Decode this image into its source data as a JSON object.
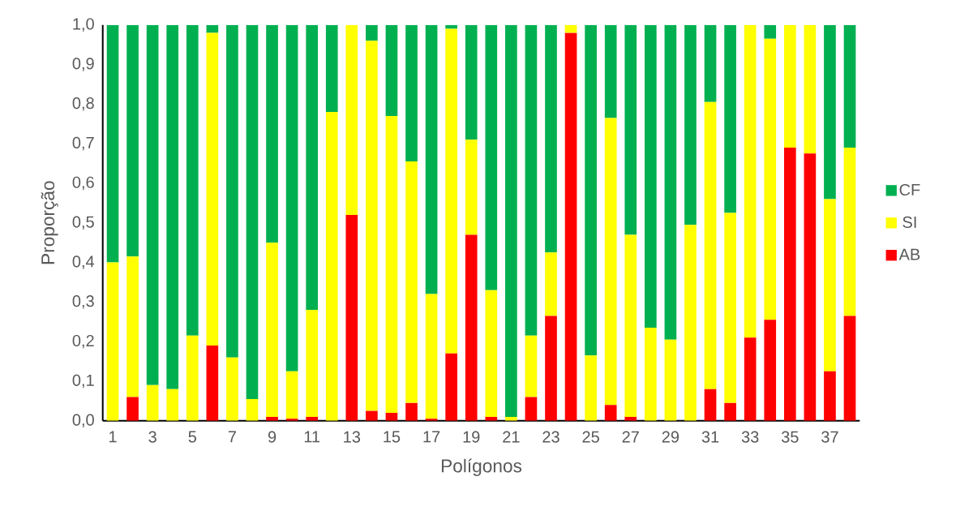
{
  "chart_data": {
    "type": "bar",
    "stacked": true,
    "xlabel": "Polígonos",
    "ylabel": "Proporção",
    "categories": [
      "1",
      null,
      "3",
      null,
      "5",
      null,
      "7",
      null,
      "9",
      null,
      "11",
      null,
      "13",
      null,
      "15",
      null,
      "17",
      null,
      "19",
      null,
      "21",
      null,
      "23",
      null,
      "25",
      null,
      "27",
      null,
      "29",
      null,
      "31",
      null,
      "33",
      null,
      "35",
      null,
      "37",
      null
    ],
    "series": [
      {
        "name": "AB",
        "color": "#ff0000",
        "values": [
          0,
          0.06,
          0,
          0,
          0,
          0.19,
          0,
          0,
          0.01,
          0.005,
          0.01,
          0,
          0.52,
          0.025,
          0.02,
          0.045,
          0.005,
          0.17,
          0.47,
          0.01,
          0,
          0.06,
          0.265,
          0.98,
          0,
          0.04,
          0.01,
          0,
          0,
          0,
          0.08,
          0.045,
          0.21,
          0.255,
          0.69,
          0.675,
          0.125,
          0.265
        ]
      },
      {
        "name": "SI",
        "color": "#ffff00",
        "values": [
          0.4,
          0.355,
          0.09,
          0.08,
          0.215,
          0.79,
          0.16,
          0.055,
          0.44,
          0.12,
          0.27,
          0.78,
          0.48,
          0.935,
          0.75,
          0.61,
          0.315,
          0.82,
          0.24,
          0.32,
          0.01,
          0.155,
          0.16,
          0.02,
          0.165,
          0.725,
          0.46,
          0.235,
          0.205,
          0.495,
          0.725,
          0.48,
          0.79,
          0.71,
          0.31,
          0.325,
          0.435,
          0.425
        ]
      },
      {
        "name": "CF",
        "color": "#00b050",
        "values": [
          0.6,
          0.585,
          0.91,
          0.92,
          0.785,
          0.02,
          0.84,
          0.945,
          0.55,
          0.875,
          0.72,
          0.22,
          0,
          0.04,
          0.23,
          0.345,
          0.68,
          0.01,
          0.29,
          0.67,
          0.99,
          0.785,
          0.575,
          0,
          0.835,
          0.235,
          0.53,
          0.765,
          0.795,
          0.505,
          0.195,
          0.475,
          0,
          0.035,
          0,
          0,
          0.44,
          0.31
        ]
      }
    ],
    "ylim": [
      0,
      1
    ],
    "yticks": [
      {
        "value": 0,
        "label": "0,0"
      },
      {
        "value": 0.1,
        "label": "0,1"
      },
      {
        "value": 0.2,
        "label": "0,2"
      },
      {
        "value": 0.3,
        "label": "0,3"
      },
      {
        "value": 0.4,
        "label": "0,4"
      },
      {
        "value": 0.5,
        "label": "0,5"
      },
      {
        "value": 0.6,
        "label": "0,6"
      },
      {
        "value": 0.7,
        "label": "0,7"
      },
      {
        "value": 0.8,
        "label": "0,8"
      },
      {
        "value": 0.9,
        "label": "0,9"
      },
      {
        "value": 1,
        "label": "1,0"
      }
    ],
    "legend": "right"
  }
}
